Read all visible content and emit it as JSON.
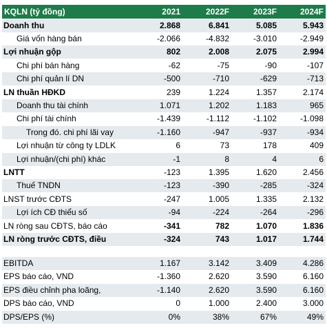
{
  "table": {
    "header": [
      "KQLN (tỷ đồng)",
      "2021",
      "2022F",
      "2023F",
      "2024F"
    ],
    "sections": [
      {
        "rows": [
          [
            "Doanh thu",
            "2.868",
            "6.841",
            "5.085",
            "5.943"
          ],
          [
            "Giá vốn hàng bán",
            "-2.066",
            "-4.832",
            "-3.010",
            "-2.949"
          ],
          [
            "Lợi nhuận gộp",
            "802",
            "2.008",
            "2.075",
            "2.994"
          ],
          [
            "Chi phí bán hàng",
            "-62",
            "-75",
            "-90",
            "-107"
          ],
          [
            "Chi phí quản lí DN",
            "-500",
            "-710",
            "-629",
            "-713"
          ],
          [
            "LN thuần HĐKD",
            "239",
            "1.224",
            "1.357",
            "2.174"
          ],
          [
            "Doanh thu tài chính",
            "1.071",
            "1.202",
            "1.183",
            "965"
          ],
          [
            "Chi phí tài chính",
            "-1.439",
            "-1.112",
            "-1.102",
            "-1.098"
          ],
          [
            "Trong đó. chi phí lãi vay",
            "-1.160",
            "-947",
            "-937",
            "-934"
          ],
          [
            "Lợi nhuận từ công ty LDLK",
            "6",
            "73",
            "178",
            "409"
          ],
          [
            "Lợi nhuận/(chi phí) khác",
            "-1",
            "8",
            "4",
            "6"
          ],
          [
            "LNTT",
            "-123",
            "1.395",
            "1.620",
            "2.456"
          ],
          [
            "Thuế TNDN",
            "-123",
            "-390",
            "-285",
            "-324"
          ],
          [
            "LNST trước CĐTS",
            "-247",
            "1.005",
            "1.335",
            "2.132"
          ],
          [
            "Lợi ích CĐ thiểu số",
            "-94",
            "-224",
            "-264",
            "-296"
          ],
          [
            "LN ròng sau CĐTS, báo cáo",
            "-341",
            "782",
            "1.070",
            "1.836"
          ],
          [
            "LN ròng trước CĐTS, điều",
            "-324",
            "743",
            "1.017",
            "1.744"
          ]
        ]
      },
      {
        "rows": [
          [
            "EBITDA",
            "1.167",
            "3.142",
            "3.409",
            "4.286"
          ],
          [
            "EPS báo cáo, VND",
            "-1.360",
            "2.620",
            "3.590",
            "6.160"
          ],
          [
            "EPS điều chỉnh pha loãng,",
            "-1.140",
            "2.620",
            "3.590",
            "6.160"
          ],
          [
            "DPS báo cáo, VND",
            "0",
            "1.000",
            "2.400",
            "3.000"
          ],
          [
            "DPS/EPS (%)",
            "0%",
            "38%",
            "67%",
            "49%"
          ]
        ]
      }
    ]
  }
}
